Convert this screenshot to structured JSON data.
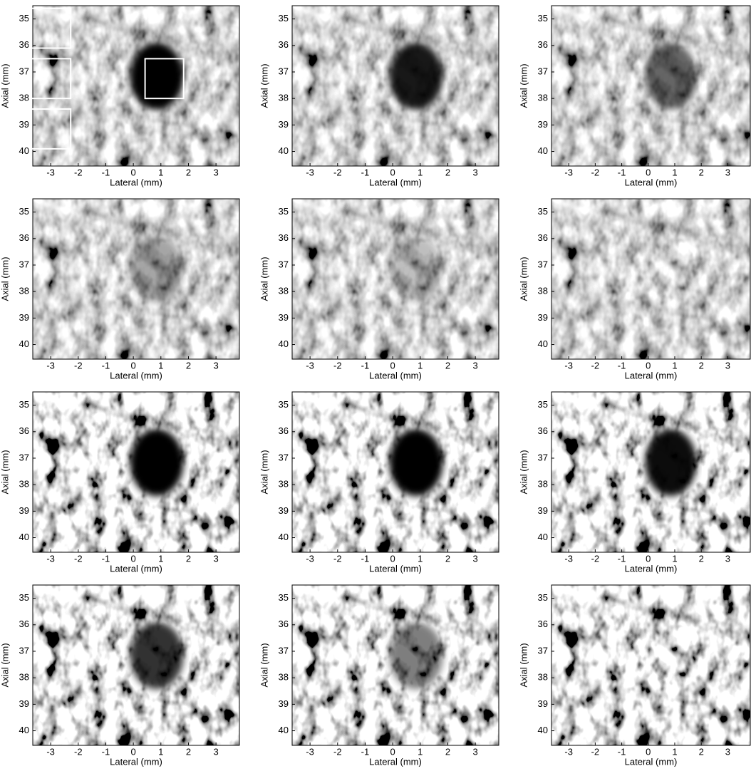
{
  "chart_data": [
    {
      "type": "image",
      "x_label": "Lateral (mm)",
      "y_label": "Axial (mm)",
      "xlim": [
        -3.65,
        3.85
      ],
      "ylim": [
        34.5,
        40.55
      ],
      "y_inverted": true,
      "xticks": [
        -3,
        -2,
        -1,
        0,
        1,
        2,
        3
      ],
      "yticks": [
        35,
        36,
        37,
        38,
        39,
        40
      ],
      "regions": [
        {
          "x": [
            -3.8,
            -2.3
          ],
          "y": [
            34.6,
            36.1
          ]
        },
        {
          "x": [
            -3.8,
            -2.3
          ],
          "y": [
            36.5,
            38.0
          ]
        },
        {
          "x": [
            -3.8,
            -2.3
          ],
          "y": [
            38.4,
            39.9
          ]
        },
        {
          "x": [
            0.4,
            1.8
          ],
          "y": [
            36.5,
            38.0
          ]
        }
      ],
      "region_color": "#ffffff"
    },
    {
      "type": "image",
      "x_label": "Lateral (mm)",
      "y_label": "Axial (mm)",
      "xlim": [
        -3.65,
        3.85
      ],
      "ylim": [
        34.5,
        40.55
      ],
      "y_inverted": true,
      "xticks": [
        -3,
        -2,
        -1,
        0,
        1,
        2,
        3
      ],
      "yticks": [
        35,
        36,
        37,
        38,
        39,
        40
      ]
    },
    {
      "type": "image",
      "x_label": "Lateral (mm)",
      "y_label": "Axial (mm)",
      "xlim": [
        -3.65,
        3.85
      ],
      "ylim": [
        34.5,
        40.55
      ],
      "y_inverted": true,
      "xticks": [
        -3,
        -2,
        -1,
        0,
        1,
        2,
        3
      ],
      "yticks": [
        35,
        36,
        37,
        38,
        39,
        40
      ]
    },
    {
      "type": "image",
      "x_label": "Lateral (mm)",
      "y_label": "Axial (mm)",
      "xlim": [
        -3.65,
        3.85
      ],
      "ylim": [
        34.5,
        40.55
      ],
      "y_inverted": true,
      "xticks": [
        -3,
        -2,
        -1,
        0,
        1,
        2,
        3
      ],
      "yticks": [
        35,
        36,
        37,
        38,
        39,
        40
      ]
    },
    {
      "type": "image",
      "x_label": "Lateral (mm)",
      "y_label": "Axial (mm)",
      "xlim": [
        -3.65,
        3.85
      ],
      "ylim": [
        34.5,
        40.55
      ],
      "y_inverted": true,
      "xticks": [
        -3,
        -2,
        -1,
        0,
        1,
        2,
        3
      ],
      "yticks": [
        35,
        36,
        37,
        38,
        39,
        40
      ]
    },
    {
      "type": "image",
      "x_label": "Lateral (mm)",
      "y_label": "Axial (mm)",
      "xlim": [
        -3.65,
        3.85
      ],
      "ylim": [
        34.5,
        40.55
      ],
      "y_inverted": true,
      "xticks": [
        -3,
        -2,
        -1,
        0,
        1,
        2,
        3
      ],
      "yticks": [
        35,
        36,
        37,
        38,
        39,
        40
      ]
    },
    {
      "type": "image",
      "x_label": "Lateral (mm)",
      "y_label": "Axial (mm)",
      "xlim": [
        -3.65,
        3.85
      ],
      "ylim": [
        34.5,
        40.55
      ],
      "y_inverted": true,
      "xticks": [
        -3,
        -2,
        -1,
        0,
        1,
        2,
        3
      ],
      "yticks": [
        35,
        36,
        37,
        38,
        39,
        40
      ]
    },
    {
      "type": "image",
      "x_label": "Lateral (mm)",
      "y_label": "Axial (mm)",
      "xlim": [
        -3.65,
        3.85
      ],
      "ylim": [
        34.5,
        40.55
      ],
      "y_inverted": true,
      "xticks": [
        -3,
        -2,
        -1,
        0,
        1,
        2,
        3
      ],
      "yticks": [
        35,
        36,
        37,
        38,
        39,
        40
      ]
    },
    {
      "type": "image",
      "x_label": "Lateral (mm)",
      "y_label": "Axial (mm)",
      "xlim": [
        -3.65,
        3.85
      ],
      "ylim": [
        34.5,
        40.55
      ],
      "y_inverted": true,
      "xticks": [
        -3,
        -2,
        -1,
        0,
        1,
        2,
        3
      ],
      "yticks": [
        35,
        36,
        37,
        38,
        39,
        40
      ]
    },
    {
      "type": "image",
      "x_label": "Lateral (mm)",
      "y_label": "Axial (mm)",
      "xlim": [
        -3.65,
        3.85
      ],
      "ylim": [
        34.5,
        40.55
      ],
      "y_inverted": true,
      "xticks": [
        -3,
        -2,
        -1,
        0,
        1,
        2,
        3
      ],
      "yticks": [
        35,
        36,
        37,
        38,
        39,
        40
      ]
    },
    {
      "type": "image",
      "x_label": "Lateral (mm)",
      "y_label": "Axial (mm)",
      "xlim": [
        -3.65,
        3.85
      ],
      "ylim": [
        34.5,
        40.55
      ],
      "y_inverted": true,
      "xticks": [
        -3,
        -2,
        -1,
        0,
        1,
        2,
        3
      ],
      "yticks": [
        35,
        36,
        37,
        38,
        39,
        40
      ]
    },
    {
      "type": "image",
      "x_label": "Lateral (mm)",
      "y_label": "Axial (mm)",
      "xlim": [
        -3.65,
        3.85
      ],
      "ylim": [
        34.5,
        40.55
      ],
      "y_inverted": true,
      "xticks": [
        -3,
        -2,
        -1,
        0,
        1,
        2,
        3
      ],
      "yticks": [
        35,
        36,
        37,
        38,
        39,
        40
      ]
    }
  ]
}
